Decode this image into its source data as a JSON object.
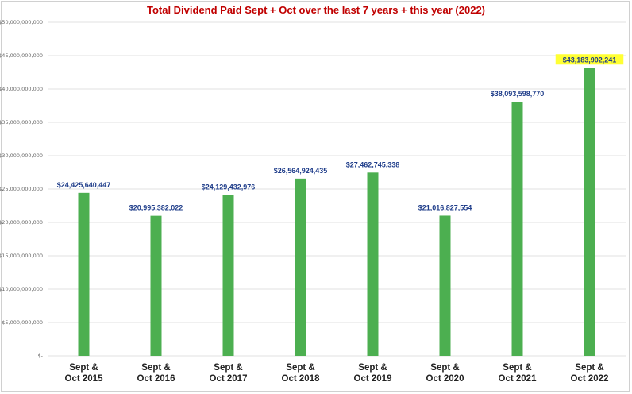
{
  "chart_data": {
    "type": "bar",
    "title": "Total Dividend Paid Sept + Oct over the last 7 years + this year (2022)",
    "categories": [
      [
        "Sept &",
        "Oct 2015"
      ],
      [
        "Sept &",
        "Oct 2016"
      ],
      [
        "Sept &",
        "Oct 2017"
      ],
      [
        "Sept &",
        "Oct 2018"
      ],
      [
        "Sept &",
        "Oct 2019"
      ],
      [
        "Sept &",
        "Oct 2020"
      ],
      [
        "Sept &",
        "Oct 2021"
      ],
      [
        "Sept &",
        "Oct 2022"
      ]
    ],
    "values": [
      24425640447,
      20995382022,
      24129432976,
      26564924435,
      27462745338,
      21016827554,
      38093598770,
      43183902241
    ],
    "data_labels": [
      "$24,425,640,447",
      "$20,995,382,022",
      "$24,129,432,976",
      "$26,564,924,435",
      "$27,462,745,338",
      "$21,016,827,554",
      "$38,093,598,770",
      "$43,183,902,241"
    ],
    "highlighted_label_index": 7,
    "ylim": [
      0,
      50000000000
    ],
    "yticks": [
      0,
      5000000000,
      10000000000,
      15000000000,
      20000000000,
      25000000000,
      30000000000,
      35000000000,
      40000000000,
      45000000000,
      50000000000
    ],
    "ytick_labels": [
      "$-",
      "$5,000,000,000",
      "$10,000,000,000",
      "$15,000,000,000",
      "$20,000,000,000",
      "$25,000,000,000",
      "$30,000,000,000",
      "$35,000,000,000",
      "$40,000,000,000",
      "$45,000,000,000",
      "$50,000,000,000"
    ],
    "xlabel": "",
    "ylabel": "",
    "grid": true,
    "legend": "none",
    "colors": {
      "bar": "#4caf50",
      "title": "#c00000",
      "data_label": "#1f3d8a",
      "highlight": "#ffff33",
      "grid": "#d9d9d9"
    }
  }
}
